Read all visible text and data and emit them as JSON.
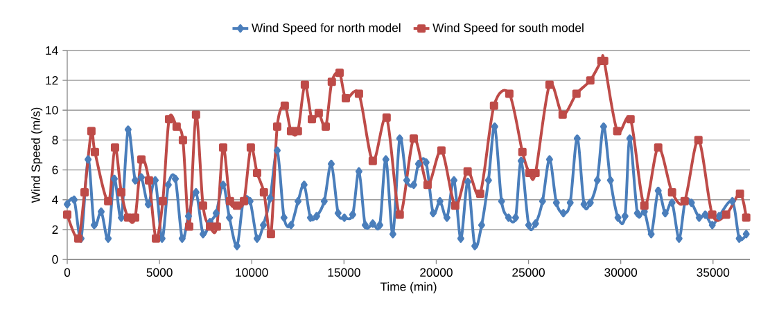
{
  "chart_data": {
    "type": "line",
    "xlabel": "Time (min)",
    "ylabel": "Wind Speed (m/s)",
    "xlim": [
      0,
      37000
    ],
    "xticks": [
      0,
      5000,
      10000,
      15000,
      20000,
      25000,
      30000,
      35000
    ],
    "ylim": [
      0,
      14
    ],
    "yticks": [
      0,
      2,
      4,
      6,
      8,
      10,
      12,
      14
    ],
    "grid": "y",
    "legend": "top",
    "series": [
      {
        "name": "Wind Speed for north model",
        "color": "#4a7ebb",
        "marker": "diamond",
        "x": [
          0,
          375,
          750,
          1130,
          1460,
          1840,
          2220,
          2550,
          2930,
          3300,
          3680,
          4020,
          4390,
          4770,
          5140,
          5480,
          5860,
          6230,
          6570,
          6980,
          7360,
          7740,
          8070,
          8450,
          8790,
          9200,
          9540,
          9910,
          10290,
          10630,
          11000,
          11380,
          11750,
          12130,
          12510,
          12840,
          13180,
          13520,
          13930,
          14310,
          14680,
          15020,
          15470,
          15810,
          16150,
          16560,
          16940,
          17270,
          17650,
          18020,
          18400,
          18780,
          19040,
          19450,
          19830,
          20200,
          20580,
          20960,
          21330,
          21710,
          22090,
          22460,
          22830,
          23170,
          23540,
          23920,
          24300,
          24600,
          25010,
          25380,
          25760,
          26140,
          26510,
          26890,
          27260,
          27640,
          28010,
          28350,
          28730,
          29070,
          29440,
          29850,
          30230,
          30490,
          30900,
          31280,
          31650,
          32030,
          32410,
          32780,
          33160,
          33490,
          33830,
          34250,
          34580,
          34960,
          35330,
          35710,
          36050,
          36420,
          36800
        ],
        "values": [
          3.7,
          4.0,
          1.4,
          6.7,
          2.3,
          3.2,
          1.4,
          5.4,
          2.8,
          8.7,
          5.3,
          5.5,
          3.7,
          5.3,
          1.4,
          5.0,
          5.4,
          1.4,
          2.9,
          4.5,
          1.7,
          2.5,
          3.1,
          5.0,
          2.8,
          0.9,
          3.9,
          3.9,
          1.4,
          2.3,
          4.1,
          7.3,
          2.8,
          2.3,
          3.9,
          5.0,
          2.8,
          2.9,
          3.9,
          6.4,
          3.1,
          2.8,
          3.0,
          5.9,
          2.3,
          2.4,
          2.3,
          6.7,
          1.7,
          8.1,
          5.3,
          5.0,
          6.4,
          6.5,
          3.1,
          3.9,
          2.8,
          5.3,
          1.4,
          5.2,
          0.9,
          2.3,
          5.3,
          8.9,
          3.9,
          2.8,
          2.8,
          6.6,
          2.3,
          2.4,
          3.9,
          6.7,
          3.8,
          3.1,
          3.8,
          8.1,
          3.7,
          3.8,
          5.3,
          8.9,
          5.3,
          2.8,
          2.9,
          8.1,
          3.1,
          3.2,
          1.7,
          4.6,
          3.1,
          3.8,
          1.4,
          3.9,
          3.8,
          2.8,
          3.0,
          2.3,
          2.9,
          null,
          3.9,
          1.4,
          1.7
        ]
      },
      {
        "name": "Wind Speed for south model",
        "color": "#be4b48",
        "marker": "square",
        "x": [
          0,
          600,
          940,
          1310,
          1500,
          2220,
          2590,
          2930,
          3300,
          3680,
          4020,
          4430,
          4810,
          5180,
          5520,
          5930,
          6270,
          6610,
          6980,
          7360,
          7740,
          8110,
          8450,
          8820,
          9200,
          9580,
          9950,
          10290,
          10660,
          11040,
          11380,
          11790,
          12130,
          12500,
          12880,
          13260,
          13630,
          14010,
          14340,
          14760,
          15100,
          15810,
          16560,
          17310,
          18020,
          18780,
          19530,
          20280,
          21030,
          21700,
          22380,
          23130,
          23960,
          24670,
          25050,
          25380,
          26140,
          26850,
          27600,
          28350,
          28950,
          29100,
          29810,
          30530,
          31280,
          32030,
          32780,
          33460,
          34210,
          34960,
          35710,
          36460,
          36800
        ],
        "values": [
          3.0,
          1.4,
          4.5,
          8.6,
          7.2,
          3.9,
          7.5,
          4.5,
          2.8,
          2.8,
          6.7,
          5.3,
          1.4,
          3.9,
          9.4,
          8.9,
          8.0,
          2.2,
          9.7,
          3.6,
          2.2,
          2.2,
          7.5,
          3.9,
          3.6,
          3.9,
          7.5,
          5.8,
          4.5,
          1.7,
          8.9,
          10.3,
          8.6,
          8.6,
          11.7,
          9.4,
          9.8,
          8.9,
          11.9,
          12.5,
          10.8,
          11.1,
          6.6,
          9.5,
          3.0,
          8.1,
          5.0,
          7.3,
          3.6,
          5.9,
          4.4,
          10.3,
          11.1,
          7.2,
          5.8,
          5.8,
          11.7,
          9.7,
          11.1,
          12.0,
          13.3,
          13.3,
          8.6,
          9.4,
          3.6,
          7.5,
          4.5,
          3.9,
          8.0,
          3.0,
          3.0,
          4.4,
          2.8
        ]
      }
    ]
  }
}
